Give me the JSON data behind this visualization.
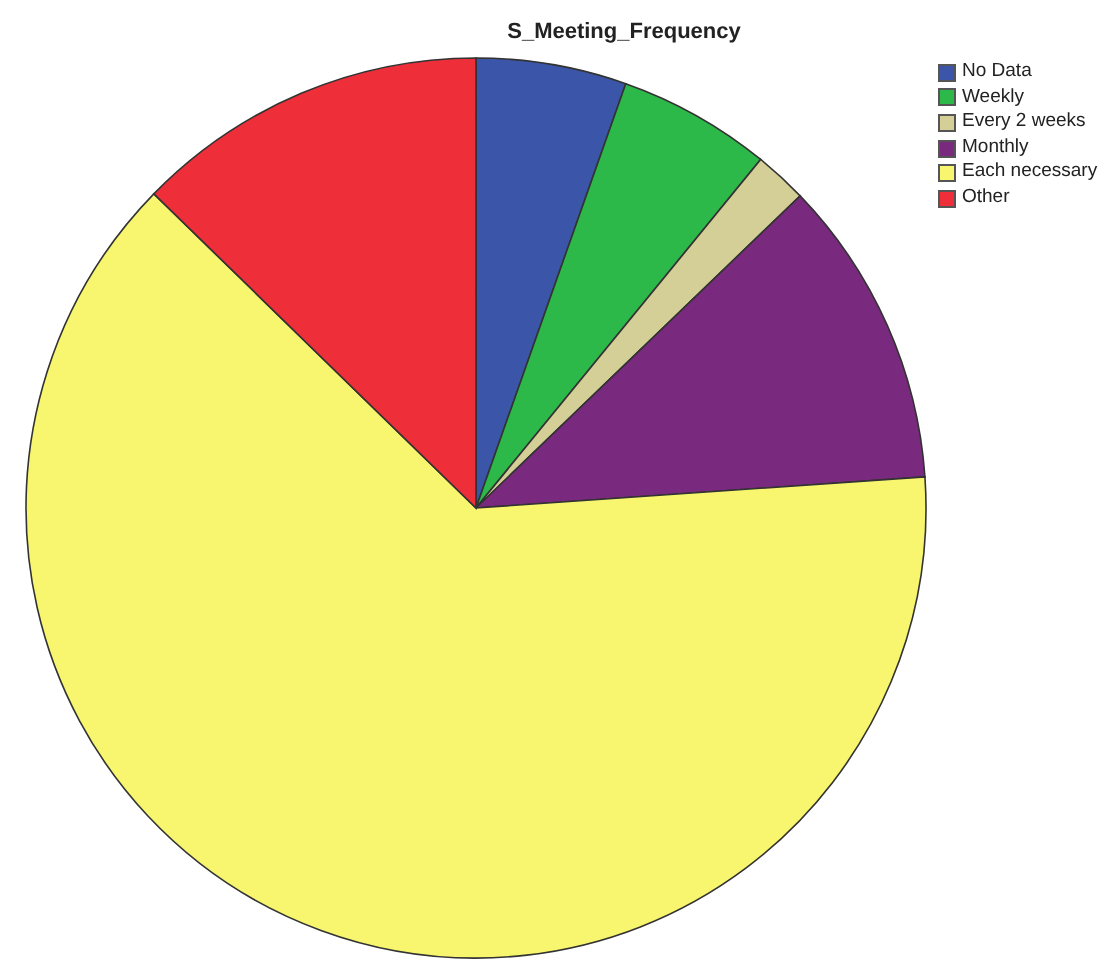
{
  "chart_data": {
    "type": "pie",
    "title": "S_Meeting_Frequency",
    "categories": [
      "No Data",
      "Weekly",
      "Every 2 weeks",
      "Monthly",
      "Each necessary",
      "Other"
    ],
    "values": [
      5.4,
      5.5,
      1.9,
      11.1,
      63.4,
      12.7
    ],
    "colors": [
      "#3b56a8",
      "#2db84a",
      "#d3cf96",
      "#7a2a7e",
      "#f8f66e",
      "#ee2f3a"
    ],
    "legend": "top right"
  }
}
